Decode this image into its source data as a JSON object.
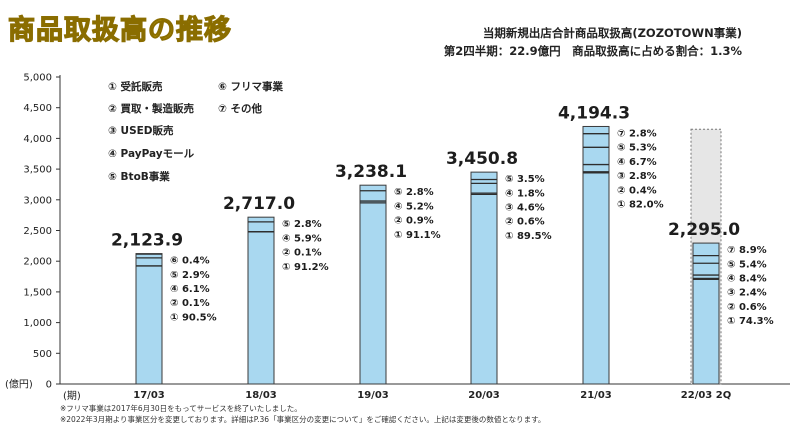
{
  "title": "商品取扱高の推移",
  "subtitle": {
    "line1": "当期新規出店合計商品取扱高(ZOZOTOWN事業)",
    "line2": "第2四半期：22.9億円　商品取扱高に占める割合：1.3%"
  },
  "legend": [
    {
      "label": "① 受託販売"
    },
    {
      "label": "② 買取・製造販売"
    },
    {
      "label": "③ USED販売"
    },
    {
      "label": "④ PayPayモール"
    },
    {
      "label": "⑤ BtoB事業"
    },
    {
      "label": "⑥ フリマ事業"
    },
    {
      "label": "⑦ その他"
    }
  ],
  "notes": {
    "line1": "※フリマ事業は2017年6月30日をもってサービスを終了いたしました。",
    "line2": "※2022年3月期より事業区分を変更しております。詳細はP.36「事業区分の変更について」をご確認ください。上記は変更後の数値となります。"
  },
  "colors": {
    "bar": "#a9d8f0",
    "bar_edge": "#3a3a3a",
    "forecast": "#e6e6e6"
  },
  "chart_data": {
    "type": "bar",
    "title": "商品取扱高の推移",
    "ylabel": "(億円)",
    "xlabel": "(期)",
    "ylim": [
      0,
      5000
    ],
    "yticks": [
      0,
      500,
      1000,
      1500,
      2000,
      2500,
      3000,
      3500,
      4000,
      4500,
      5000
    ],
    "ytick_labels": [
      "0",
      "500",
      "1,000",
      "1,500",
      "2,000",
      "2,500",
      "3,000",
      "3,500",
      "4,000",
      "4,500",
      "5,000"
    ],
    "categories": [
      "17/03",
      "18/03",
      "19/03",
      "20/03",
      "21/03",
      "22/03 2Q"
    ],
    "totals": [
      2123.9,
      2717.0,
      3238.1,
      3450.8,
      4194.3,
      2295.0
    ],
    "total_labels": [
      "2,123.9",
      "2,717.0",
      "3,238.1",
      "3,450.8",
      "4,194.3",
      "2,295.0"
    ],
    "forecast_top": 4150,
    "breakdowns": [
      [
        {
          "name": "⑥",
          "pct": "0.4%"
        },
        {
          "name": "⑤",
          "pct": "2.9%"
        },
        {
          "name": "④",
          "pct": "6.1%"
        },
        {
          "name": "②",
          "pct": "0.1%"
        },
        {
          "name": "①",
          "pct": "90.5%"
        }
      ],
      [
        {
          "name": "⑤",
          "pct": "2.8%"
        },
        {
          "name": "④",
          "pct": "5.9%"
        },
        {
          "name": "②",
          "pct": "0.1%"
        },
        {
          "name": "①",
          "pct": "91.2%"
        }
      ],
      [
        {
          "name": "⑤",
          "pct": "2.8%"
        },
        {
          "name": "④",
          "pct": "5.2%"
        },
        {
          "name": "②",
          "pct": "0.9%"
        },
        {
          "name": "①",
          "pct": "91.1%"
        }
      ],
      [
        {
          "name": "⑤",
          "pct": "3.5%"
        },
        {
          "name": "④",
          "pct": "1.8%"
        },
        {
          "name": "③",
          "pct": "4.6%"
        },
        {
          "name": "②",
          "pct": "0.6%"
        },
        {
          "name": "①",
          "pct": "89.5%"
        }
      ],
      [
        {
          "name": "⑦",
          "pct": "2.8%"
        },
        {
          "name": "⑤",
          "pct": "5.3%"
        },
        {
          "name": "④",
          "pct": "6.7%"
        },
        {
          "name": "③",
          "pct": "2.8%"
        },
        {
          "name": "②",
          "pct": "0.4%"
        },
        {
          "name": "①",
          "pct": "82.0%"
        }
      ],
      [
        {
          "name": "⑦",
          "pct": "8.9%"
        },
        {
          "name": "⑤",
          "pct": "5.4%"
        },
        {
          "name": "④",
          "pct": "8.4%"
        },
        {
          "name": "③",
          "pct": "2.4%"
        },
        {
          "name": "②",
          "pct": "0.6%"
        },
        {
          "name": "①",
          "pct": "74.3%"
        }
      ]
    ]
  }
}
